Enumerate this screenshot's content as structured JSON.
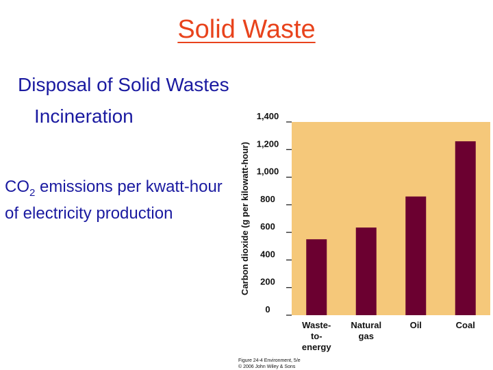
{
  "slide": {
    "title": "Solid Waste",
    "heading": "Disposal of Solid Wastes",
    "subheading": "Incineration",
    "caption_pre": "CO",
    "caption_sub": "2",
    "caption_post": " emissions per kwatt-hour of electricity production"
  },
  "chart_data": {
    "type": "bar",
    "categories": [
      [
        "Waste-",
        "to-",
        "energy"
      ],
      [
        "Natural",
        "gas"
      ],
      [
        "Oil"
      ],
      [
        "Coal"
      ]
    ],
    "values": [
      550,
      635,
      860,
      1260
    ],
    "ylabel": "Carbon dioxide (g per kilowatt-hour)",
    "ylim": [
      0,
      1400
    ],
    "yticks": [
      "0",
      "200",
      "400",
      "600",
      "800",
      "1,000",
      "1,200",
      "1,400"
    ],
    "source": [
      "Figure 24-4 Environment, 5/e",
      "© 2006 John Wiley & Sons"
    ],
    "colors": {
      "plot_bg": "#f5c87a",
      "bar": "#6b0030",
      "text": "#111111"
    }
  }
}
